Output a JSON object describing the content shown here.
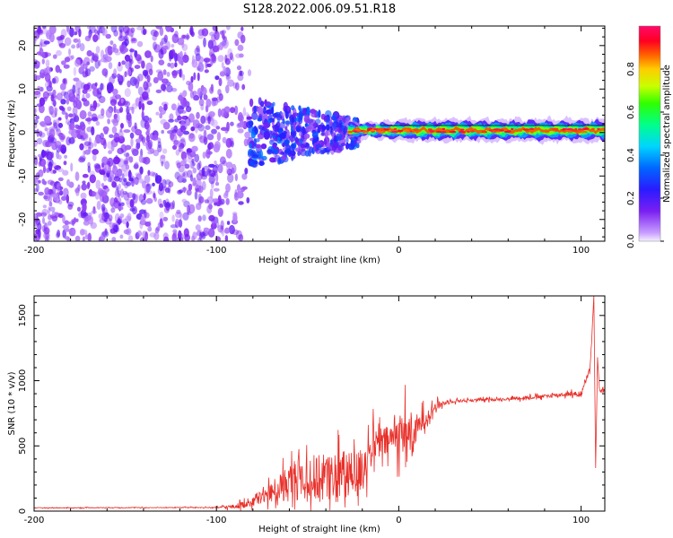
{
  "title": "S128.2022.006.09.51.R18",
  "colors": {
    "snr_line": "#e8302a",
    "axis": "#000000",
    "scatter_hue_low": "#7b2ff7",
    "scatter_hue_mid": "#00b4ff",
    "scatter_hue_high": "#ff1f4b"
  },
  "chart_data": [
    {
      "type": "heatmap",
      "title": "S128.2022.006.09.51.R18",
      "xlabel": "Height of straight line (km)",
      "ylabel": "Frequency (Hz)",
      "xlim": [
        -200,
        113
      ],
      "ylim": [
        -25,
        24.5
      ],
      "x_ticks": [
        "-200",
        "-100",
        "0",
        "100"
      ],
      "y_ticks": [
        "-20",
        "-10",
        "0",
        "10",
        "20"
      ],
      "colorbar": {
        "label": "Normalized spectral amplitude",
        "range": [
          0,
          1
        ],
        "ticks": [
          "0.0",
          "0.2",
          "0.4",
          "0.6",
          "0.8"
        ],
        "colormap": "gist_rainbow (violet → blue → cyan → green → yellow → orange → red → magenta)"
      },
      "regions": [
        {
          "x_range": [
            -200,
            -80
          ],
          "frequency_range": [
            -25,
            24.5
          ],
          "amplitude": "low",
          "pattern": "broadband scattered speckle"
        },
        {
          "x_range": [
            -80,
            -25
          ],
          "frequency_range": [
            -8,
            7
          ],
          "amplitude": "low-medium",
          "pattern": "narrowing speckle band"
        },
        {
          "x_range": [
            -25,
            113
          ],
          "frequency_center": 0.5,
          "frequency_range": [
            -1.5,
            2.5
          ],
          "amplitude": "high (0.6-1.0)",
          "pattern": "narrow carrier line"
        }
      ],
      "grid": false
    },
    {
      "type": "line",
      "xlabel": "Height of straight line (km)",
      "ylabel": "SNR (10 * v/v)",
      "xlim": [
        -200,
        113
      ],
      "ylim": [
        0,
        1650
      ],
      "x_ticks": [
        "-200",
        "-100",
        "0",
        "100"
      ],
      "y_ticks": [
        "0",
        "500",
        "1000",
        "1500"
      ],
      "series": [
        {
          "x": [
            -200,
            -180,
            -160,
            -140,
            -120,
            -100,
            -90,
            -85,
            -80,
            -75,
            -70,
            -65,
            -60,
            -55,
            -50,
            -45,
            -40,
            -35,
            -30,
            -25,
            -20,
            -15,
            -10,
            -5,
            0,
            5,
            8,
            10,
            15,
            20,
            25,
            30,
            40,
            50,
            60,
            70,
            80,
            90,
            95,
            100,
            105,
            107,
            108,
            109,
            110,
            111,
            113
          ],
          "y": [
            25,
            25,
            27,
            26,
            28,
            27,
            35,
            50,
            80,
            110,
            140,
            180,
            220,
            260,
            260,
            240,
            250,
            260,
            260,
            250,
            330,
            480,
            520,
            540,
            600,
            620,
            540,
            640,
            720,
            800,
            830,
            845,
            850,
            855,
            860,
            870,
            880,
            895,
            900,
            890,
            1100,
            1650,
            330,
            1180,
            940,
            920,
            920
          ],
          "noise": [
            4,
            4,
            4,
            4,
            4,
            5,
            25,
            40,
            60,
            80,
            110,
            160,
            210,
            250,
            280,
            270,
            270,
            280,
            300,
            300,
            220,
            200,
            180,
            160,
            220,
            250,
            200,
            150,
            80,
            50,
            30,
            20,
            15,
            15,
            15,
            20,
            20,
            25,
            25,
            25,
            30,
            0,
            0,
            0,
            20,
            20,
            20
          ]
        }
      ],
      "grid": false
    }
  ]
}
